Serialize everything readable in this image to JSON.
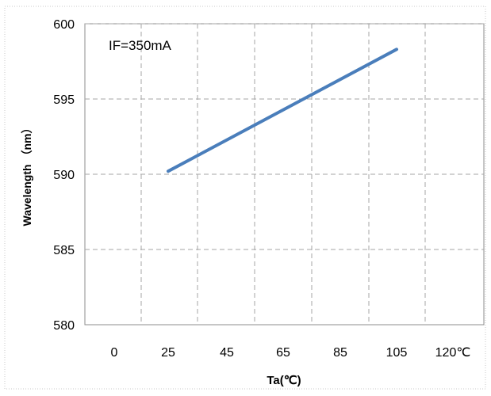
{
  "chart_data": {
    "type": "line",
    "annotation": "IF=350mA",
    "xlabel": "Ta(℃)",
    "ylabel": "Wavelength （nm）",
    "x_tick_labels": [
      "0",
      "25",
      "45",
      "65",
      "85",
      "105",
      "120℃"
    ],
    "y_ticks": [
      580,
      585,
      590,
      595,
      600
    ],
    "y_tick_labels": [
      "580",
      "585",
      "590",
      "595",
      "600"
    ],
    "ylim": [
      580,
      600
    ],
    "grid": true,
    "line_color": "#4a7ebb",
    "series": [
      {
        "x": [
          25,
          105
        ],
        "y": [
          590.2,
          598.3
        ]
      }
    ]
  }
}
